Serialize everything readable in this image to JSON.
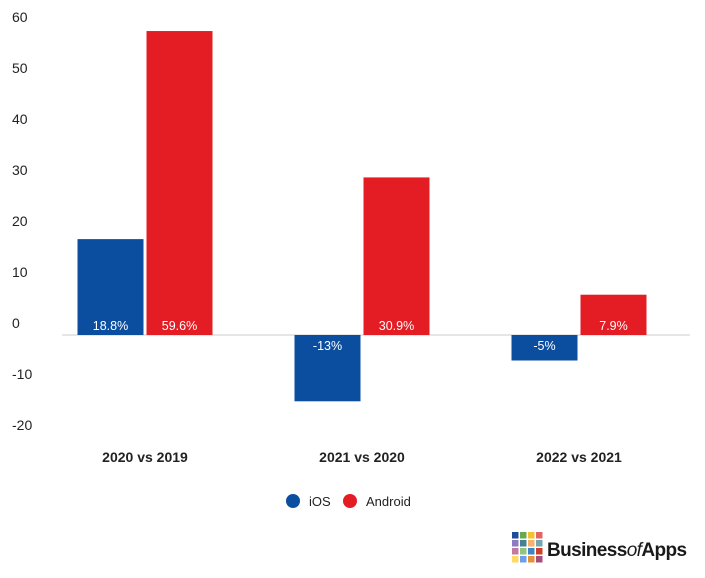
{
  "chart_data": {
    "type": "bar",
    "categories": [
      "2020 vs 2019",
      "2021 vs 2020",
      "2022 vs 2021"
    ],
    "series": [
      {
        "name": "iOS",
        "color": "#0b4e9f",
        "values": [
          18.8,
          -13,
          -5
        ],
        "labels": [
          "18.8%",
          "-13%",
          "-5%"
        ]
      },
      {
        "name": "Android",
        "color": "#e31d23",
        "values": [
          59.6,
          30.9,
          7.9
        ],
        "labels": [
          "59.6%",
          "30.9%",
          "7.9%"
        ]
      }
    ],
    "yticks": [
      60,
      50,
      40,
      30,
      20,
      10,
      0,
      -10,
      -20
    ],
    "ylim": [
      -20,
      60
    ],
    "grid": false,
    "legend_position": "bottom-center"
  },
  "brand": {
    "name_part1": "Business",
    "name_part2": "of",
    "name_part3": "Apps",
    "tile_colors": [
      "#1e4c9a",
      "#6aa84f",
      "#f1c232",
      "#e06666",
      "#8e7cc3",
      "#45818e",
      "#f6b26b",
      "#76a5af",
      "#c27ba0",
      "#93c47d",
      "#3d85c6",
      "#cc4125",
      "#ffd966",
      "#6d9eeb",
      "#e69138",
      "#a64d79"
    ]
  }
}
